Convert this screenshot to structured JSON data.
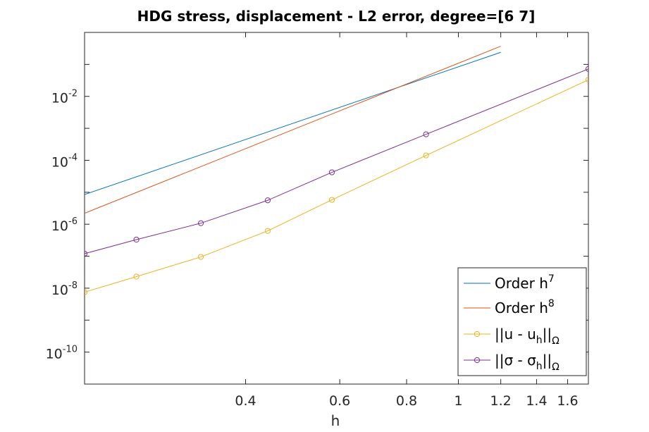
{
  "chart_data": {
    "type": "line",
    "title": "HDG stress, displacement - L2 error, degree=[6  7]",
    "xlabel": "h",
    "ylabel": "",
    "xscale": "log",
    "yscale": "log",
    "xlim": [
      0.2,
      1.75
    ],
    "ylim": [
      1e-11,
      1.0
    ],
    "x_ticks": [
      {
        "value": 0.4,
        "label": "0.4"
      },
      {
        "value": 0.6,
        "label": "0.6"
      },
      {
        "value": 0.8,
        "label": "0.8"
      },
      {
        "value": 1.0,
        "label": "1"
      },
      {
        "value": 1.2,
        "label": "1.2"
      },
      {
        "value": 1.4,
        "label": "1.4"
      },
      {
        "value": 1.6,
        "label": "1.6"
      }
    ],
    "y_ticks": [
      {
        "value": 0.01,
        "base": "10",
        "exp": "-2"
      },
      {
        "value": 0.0001,
        "base": "10",
        "exp": "-4"
      },
      {
        "value": 1e-06,
        "base": "10",
        "exp": "-6"
      },
      {
        "value": 1e-08,
        "base": "10",
        "exp": "-8"
      },
      {
        "value": 1e-10,
        "base": "10",
        "exp": "-10"
      }
    ],
    "grid": false,
    "legend_position": "bottom-right",
    "series": [
      {
        "name": "Order h",
        "name_sup": "7",
        "color": "#0072BD",
        "marker": "none",
        "x": [
          0.2,
          1.2
        ],
        "y": [
          8.5e-06,
          0.238
        ]
      },
      {
        "name": "Order h",
        "name_sup": "8",
        "color": "#D95319",
        "marker": "none",
        "x": [
          0.2,
          1.2
        ],
        "y": [
          2.2e-06,
          0.37
        ]
      },
      {
        "name": "||u - u",
        "name_sub": "h",
        "name_tail": "||",
        "name_tail_sub": "Ω",
        "color": "#EDB120",
        "marker": "circle",
        "x": [
          0.2,
          0.25,
          0.33,
          0.44,
          0.58,
          0.87,
          1.75
        ],
        "y": [
          7.5e-09,
          2.3e-08,
          9.5e-08,
          6.2e-07,
          5.8e-06,
          0.000142,
          0.033
        ]
      },
      {
        "name": "||σ - σ",
        "name_sub": "h",
        "name_tail": "||",
        "name_tail_sub": "Ω",
        "color": "#7E2F8E",
        "marker": "circle",
        "x": [
          0.2,
          0.25,
          0.33,
          0.44,
          0.58,
          0.87,
          1.75
        ],
        "y": [
          1.2e-07,
          3.3e-07,
          1.08e-06,
          5.6e-06,
          4.2e-05,
          0.00065,
          0.072
        ]
      }
    ]
  }
}
